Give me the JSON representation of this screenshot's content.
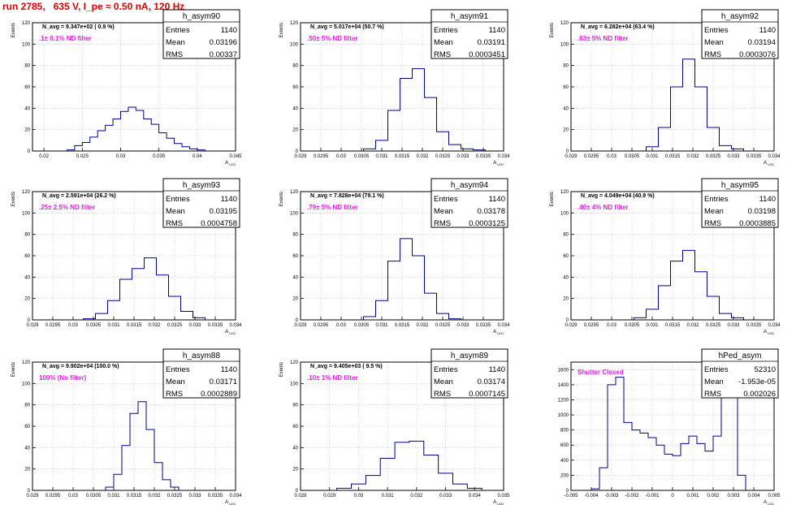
{
  "title": "run 2785,   635 V, I_pe ≈ 0.50 nA, 120 Hz",
  "colors": {
    "title": "#e00000",
    "annotation": "#e020e0",
    "histogram": "#00008b",
    "grid": "#b8b8b8",
    "frame": "#000000"
  },
  "stats_labels": {
    "entries": "Entries",
    "mean": "Mean",
    "rms": "RMS"
  },
  "chart_data": [
    {
      "type": "histogram",
      "name": "h_asym90",
      "stats": {
        "entries": "1140",
        "mean": "0.03196",
        "rms": "0.00337"
      },
      "navg": "N_avg = 9.347e+02 ( 0.9 %)",
      "note": ".1± 0.1% ND filter",
      "ylabel": "Events",
      "xlabel": "A_LED",
      "xlim": [
        0.0185,
        0.045
      ],
      "ylim": [
        0,
        120
      ],
      "xticks": [
        0.02,
        0.025,
        0.03,
        0.035,
        0.04,
        0.045
      ],
      "xtick_labels": [
        "0.02",
        "0.025",
        "0.03",
        "0.035",
        "0.04",
        "0.045"
      ],
      "yticks": [
        0,
        20,
        40,
        60,
        80,
        100,
        120
      ],
      "x": [
        0.0235,
        0.0245,
        0.0255,
        0.0265,
        0.0275,
        0.0285,
        0.0295,
        0.0305,
        0.0315,
        0.0325,
        0.0335,
        0.0345,
        0.0355,
        0.0365,
        0.0375,
        0.0385,
        0.0395,
        0.0405
      ],
      "values": [
        1,
        5,
        8,
        13,
        19,
        24,
        30,
        37,
        41,
        38,
        30,
        25,
        17,
        12,
        7,
        4,
        2,
        1
      ]
    },
    {
      "type": "histogram",
      "name": "h_asym91",
      "stats": {
        "entries": "1140",
        "mean": "0.03191",
        "rms": "0.0003451"
      },
      "navg": "N_avg = 5.017e+04 (50.7 %)",
      "note": ".50± 5% ND filter",
      "ylabel": "Events",
      "xlabel": "A_LED",
      "xlim": [
        0.029,
        0.034
      ],
      "ylim": [
        0,
        120
      ],
      "xticks": [
        0.029,
        0.0295,
        0.03,
        0.0305,
        0.031,
        0.0315,
        0.032,
        0.0325,
        0.033,
        0.0335,
        0.034
      ],
      "xtick_labels": [
        "0.029",
        "0.0295",
        "0.03",
        "0.0305",
        "0.031",
        "0.0315",
        "0.032",
        "0.0325",
        "0.033",
        "0.0335",
        "0.034"
      ],
      "yticks": [
        0,
        20,
        40,
        60,
        80,
        100,
        120
      ],
      "x": [
        0.0307,
        0.031,
        0.0313,
        0.0316,
        0.0319,
        0.0322,
        0.0325,
        0.0328,
        0.0331,
        0.0334
      ],
      "values": [
        2,
        10,
        38,
        68,
        77,
        50,
        18,
        6,
        2,
        1
      ]
    },
    {
      "type": "histogram",
      "name": "h_asym92",
      "stats": {
        "entries": "1140",
        "mean": "0.03194",
        "rms": "0.0003076"
      },
      "navg": "N_avg = 6.282e+04 (63.4 %)",
      "note": ".63± 5% ND filter",
      "ylabel": "Events",
      "xlabel": "A_LED",
      "xlim": [
        0.029,
        0.034
      ],
      "ylim": [
        0,
        120
      ],
      "xticks": [
        0.029,
        0.0295,
        0.03,
        0.0305,
        0.031,
        0.0315,
        0.032,
        0.0325,
        0.033,
        0.0335,
        0.034
      ],
      "xtick_labels": [
        "0.029",
        "0.0295",
        "0.03",
        "0.0305",
        "0.031",
        "0.0315",
        "0.032",
        "0.0325",
        "0.033",
        "0.0335",
        "0.034"
      ],
      "yticks": [
        0,
        20,
        40,
        60,
        80,
        100,
        120
      ],
      "x": [
        0.031,
        0.0313,
        0.0316,
        0.0319,
        0.0322,
        0.0325,
        0.0328,
        0.0331
      ],
      "values": [
        4,
        22,
        60,
        86,
        60,
        22,
        5,
        2
      ]
    },
    {
      "type": "histogram",
      "name": "h_asym93",
      "stats": {
        "entries": "1140",
        "mean": "0.03195",
        "rms": "0.0004758"
      },
      "navg": "N_avg = 2.591e+04 (26.2 %)",
      "note": ".25± 2.5% ND filter",
      "ylabel": "Events",
      "xlabel": "A_LED",
      "xlim": [
        0.029,
        0.034
      ],
      "ylim": [
        0,
        120
      ],
      "xticks": [
        0.029,
        0.0295,
        0.03,
        0.0305,
        0.031,
        0.0315,
        0.032,
        0.0325,
        0.033,
        0.0335,
        0.034
      ],
      "xtick_labels": [
        "0.029",
        "0.0295",
        "0.03",
        "0.0305",
        "0.031",
        "0.0315",
        "0.032",
        "0.0325",
        "0.033",
        "0.0335",
        "0.034"
      ],
      "yticks": [
        0,
        20,
        40,
        60,
        80,
        100,
        120
      ],
      "x": [
        0.0304,
        0.0307,
        0.031,
        0.0313,
        0.0316,
        0.0319,
        0.0322,
        0.0325,
        0.0328,
        0.0331
      ],
      "values": [
        1,
        6,
        18,
        38,
        48,
        58,
        42,
        22,
        8,
        2
      ]
    },
    {
      "type": "histogram",
      "name": "h_asym94",
      "stats": {
        "entries": "1140",
        "mean": "0.03178",
        "rms": "0.0003125"
      },
      "navg": "N_avg = 7.828e+04 (79.1 %)",
      "note": ".79± 5% ND filter",
      "ylabel": "Events",
      "xlabel": "A_LED",
      "xlim": [
        0.029,
        0.034
      ],
      "ylim": [
        0,
        120
      ],
      "xticks": [
        0.029,
        0.0295,
        0.03,
        0.0305,
        0.031,
        0.0315,
        0.032,
        0.0325,
        0.033,
        0.0335,
        0.034
      ],
      "xtick_labels": [
        "0.029",
        "0.0295",
        "0.03",
        "0.0305",
        "0.031",
        "0.0315",
        "0.032",
        "0.0325",
        "0.033",
        "0.0335",
        "0.034"
      ],
      "yticks": [
        0,
        20,
        40,
        60,
        80,
        100,
        120
      ],
      "x": [
        0.0307,
        0.031,
        0.0313,
        0.0316,
        0.0319,
        0.0322,
        0.0325,
        0.0328
      ],
      "values": [
        3,
        18,
        55,
        76,
        60,
        25,
        6,
        1
      ]
    },
    {
      "type": "histogram",
      "name": "h_asym95",
      "stats": {
        "entries": "1140",
        "mean": "0.03198",
        "rms": "0.0003885"
      },
      "navg": "N_avg = 4.049e+04 (40.9 %)",
      "note": ".40± 4% ND filter",
      "ylabel": "Events",
      "xlabel": "A_LED",
      "xlim": [
        0.029,
        0.034
      ],
      "ylim": [
        0,
        120
      ],
      "xticks": [
        0.029,
        0.0295,
        0.03,
        0.0305,
        0.031,
        0.0315,
        0.032,
        0.0325,
        0.033,
        0.0335,
        0.034
      ],
      "xtick_labels": [
        "0.029",
        "0.0295",
        "0.03",
        "0.0305",
        "0.031",
        "0.0315",
        "0.032",
        "0.0325",
        "0.033",
        "0.0335",
        "0.034"
      ],
      "yticks": [
        0,
        20,
        40,
        60,
        80,
        100,
        120
      ],
      "x": [
        0.0307,
        0.031,
        0.0313,
        0.0316,
        0.0319,
        0.0322,
        0.0325,
        0.0328,
        0.0331
      ],
      "values": [
        2,
        10,
        32,
        55,
        65,
        45,
        22,
        6,
        2
      ]
    },
    {
      "type": "histogram",
      "name": "h_asym88",
      "stats": {
        "entries": "1140",
        "mean": "0.03171",
        "rms": "0.0002889"
      },
      "navg": "N_avg = 9.902e+04 (100.0 %)",
      "note": "100% (No filter)",
      "ylabel": "Events",
      "xlabel": "A_LED",
      "xlim": [
        0.029,
        0.034
      ],
      "ylim": [
        0,
        120
      ],
      "xticks": [
        0.029,
        0.0295,
        0.03,
        0.0305,
        0.031,
        0.0315,
        0.032,
        0.0325,
        0.033,
        0.0335,
        0.034
      ],
      "xtick_labels": [
        "0.029",
        "0.0295",
        "0.03",
        "0.0305",
        "0.031",
        "0.0315",
        "0.032",
        "0.0325",
        "0.033",
        "0.0335",
        "0.034"
      ],
      "yticks": [
        0,
        20,
        40,
        60,
        80,
        100,
        120
      ],
      "x": [
        0.0309,
        0.0311,
        0.0313,
        0.0315,
        0.0317,
        0.0319,
        0.0321,
        0.0323,
        0.0325
      ],
      "values": [
        3,
        15,
        42,
        72,
        83,
        57,
        26,
        10,
        3
      ]
    },
    {
      "type": "histogram",
      "name": "h_asym89",
      "stats": {
        "entries": "1140",
        "mean": "0.03174",
        "rms": "0.0007145"
      },
      "navg": "N_avg = 9.405e+03 ( 9.5 %)",
      "note": ".10± 1% ND filter",
      "ylabel": "Events",
      "xlabel": "A_LED",
      "xlim": [
        0.028,
        0.035
      ],
      "ylim": [
        0,
        120
      ],
      "xticks": [
        0.028,
        0.029,
        0.03,
        0.031,
        0.032,
        0.033,
        0.034,
        0.035
      ],
      "xtick_labels": [
        "0.028",
        "0.029",
        "0.03",
        "0.031",
        "0.032",
        "0.033",
        "0.034",
        "0.035"
      ],
      "yticks": [
        0,
        20,
        40,
        60,
        80,
        100,
        120
      ],
      "x": [
        0.0295,
        0.03,
        0.0305,
        0.031,
        0.0315,
        0.032,
        0.0325,
        0.033,
        0.0335,
        0.034
      ],
      "values": [
        2,
        6,
        14,
        30,
        45,
        46,
        33,
        16,
        6,
        2
      ]
    },
    {
      "type": "histogram",
      "name": "hPed_asym",
      "stats": {
        "entries": "52310",
        "mean": "-1.953e-05",
        "rms": "0.002026"
      },
      "navg": "",
      "note": "Shutter Closed",
      "ylabel": "",
      "xlabel": "A_LED",
      "xlim": [
        -0.005,
        0.005
      ],
      "ylim": [
        0,
        1700
      ],
      "xticks": [
        -0.005,
        -0.004,
        -0.003,
        -0.002,
        -0.001,
        0,
        0.001,
        0.002,
        0.003,
        0.004,
        0.005
      ],
      "xtick_labels": [
        "-0.005",
        "-0.004",
        "-0.003",
        "-0.002",
        "-0.001",
        "0",
        "0.001",
        "0.002",
        "0.003",
        "0.004",
        "0.005"
      ],
      "yticks": [
        0,
        200,
        400,
        600,
        800,
        1000,
        1200,
        1400,
        1600
      ],
      "x": [
        -0.0038,
        -0.0034,
        -0.003,
        -0.0026,
        -0.0022,
        -0.0018,
        -0.0014,
        -0.001,
        -0.0006,
        -0.0002,
        0.0002,
        0.0006,
        0.001,
        0.0014,
        0.0018,
        0.0022,
        0.0026,
        0.003,
        0.0034
      ],
      "values": [
        20,
        300,
        1400,
        1500,
        900,
        800,
        760,
        700,
        600,
        480,
        460,
        620,
        720,
        620,
        520,
        720,
        1300,
        1500,
        200
      ]
    }
  ]
}
